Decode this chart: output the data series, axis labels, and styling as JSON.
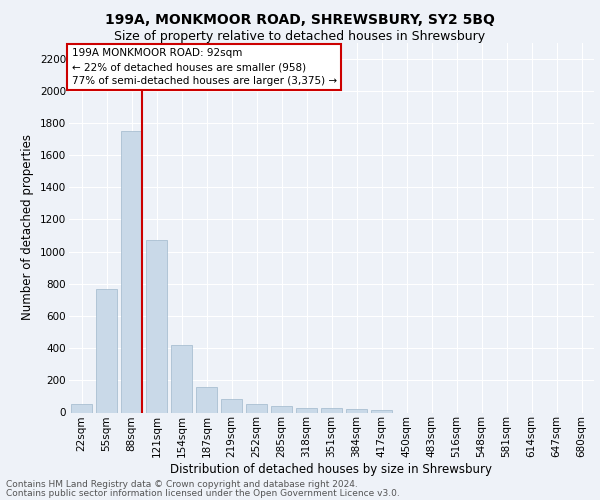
{
  "title1": "199A, MONKMOOR ROAD, SHREWSBURY, SY2 5BQ",
  "title2": "Size of property relative to detached houses in Shrewsbury",
  "xlabel": "Distribution of detached houses by size in Shrewsbury",
  "ylabel": "Number of detached properties",
  "categories": [
    "22sqm",
    "55sqm",
    "88sqm",
    "121sqm",
    "154sqm",
    "187sqm",
    "219sqm",
    "252sqm",
    "285sqm",
    "318sqm",
    "351sqm",
    "384sqm",
    "417sqm",
    "450sqm",
    "483sqm",
    "516sqm",
    "548sqm",
    "581sqm",
    "614sqm",
    "647sqm",
    "680sqm"
  ],
  "values": [
    55,
    770,
    1750,
    1070,
    420,
    160,
    85,
    50,
    40,
    30,
    25,
    20,
    15,
    0,
    0,
    0,
    0,
    0,
    0,
    0,
    0
  ],
  "bar_color": "#c9d9e8",
  "bar_edge_color": "#a0b8cc",
  "vline_color": "#cc0000",
  "vline_x_index": 2,
  "annotation_box_text": "199A MONKMOOR ROAD: 92sqm\n← 22% of detached houses are smaller (958)\n77% of semi-detached houses are larger (3,375) →",
  "box_edge_color": "#cc0000",
  "ylim": [
    0,
    2300
  ],
  "yticks": [
    0,
    200,
    400,
    600,
    800,
    1000,
    1200,
    1400,
    1600,
    1800,
    2000,
    2200
  ],
  "footer1": "Contains HM Land Registry data © Crown copyright and database right 2024.",
  "footer2": "Contains public sector information licensed under the Open Government Licence v3.0.",
  "bg_color": "#eef2f8",
  "plot_bg_color": "#eef2f8",
  "grid_color": "#ffffff",
  "title1_fontsize": 10,
  "title2_fontsize": 9,
  "xlabel_fontsize": 8.5,
  "ylabel_fontsize": 8.5,
  "tick_fontsize": 7.5,
  "annotation_fontsize": 7.5,
  "footer_fontsize": 6.5
}
